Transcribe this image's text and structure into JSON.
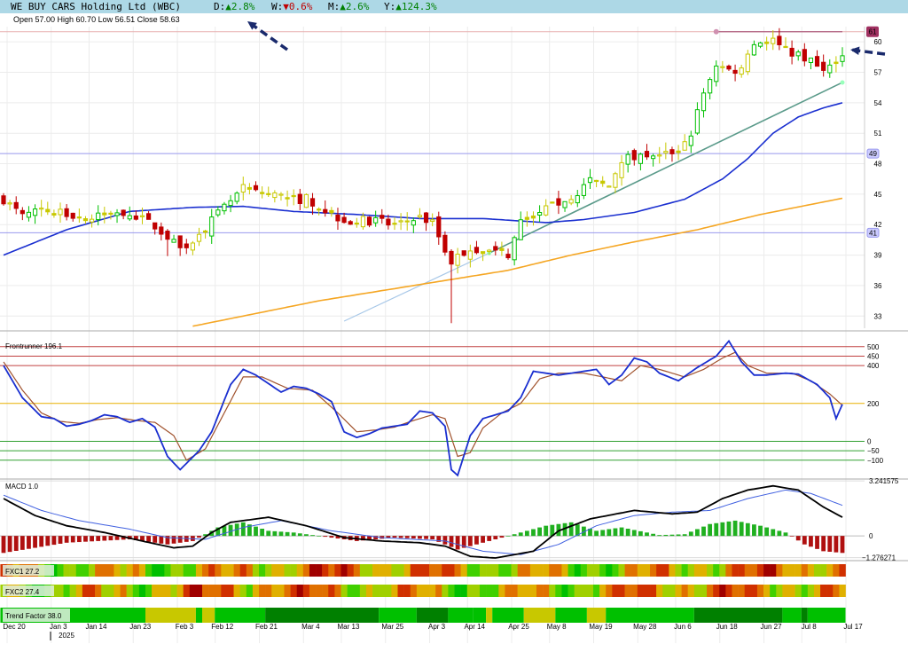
{
  "header": {
    "title": "WE BUY CARS Holding Ltd (WBC)",
    "changes": [
      {
        "label": "D:",
        "arrow": "▲",
        "value": "2.8%",
        "dir": "up"
      },
      {
        "label": "W:",
        "arrow": "▼",
        "value": "0.6%",
        "dir": "down"
      },
      {
        "label": "M:",
        "arrow": "▲",
        "value": "2.6%",
        "dir": "up"
      },
      {
        "label": "Y:",
        "arrow": "▲",
        "value": "124.3%",
        "dir": "up"
      }
    ]
  },
  "ohlc": "Open 57.00  High 60.70  Low 56.51  Close 58.63",
  "colors": {
    "up": "#00c000",
    "down": "#c00000",
    "neutral": "#c8c800",
    "ma_blue": "#1a2fd0",
    "ma_orange": "#f5a623",
    "trend": "#5a9a8a"
  },
  "chart_data": [
    {
      "type": "candlestick",
      "panel": "price",
      "yticks": [
        33,
        36,
        39,
        42,
        45,
        48,
        51,
        54,
        57,
        60
      ],
      "ylim": [
        31.8,
        61.5
      ],
      "x_labels": [
        "Dec 20",
        "Jan 3",
        "Jan 14",
        "Jan 23",
        "Feb 3",
        "Feb 12",
        "Feb 21",
        "Mar 4",
        "Mar 13",
        "Mar 25",
        "Apr 3",
        "Apr 14",
        "Apr 25",
        "May 8",
        "May 19",
        "May 28",
        "Jun 6",
        "Jun 18",
        "Jun 27",
        "Jul 8",
        "Jul 17"
      ],
      "year_label": "2025",
      "close_anchors": [
        [
          0,
          44.5
        ],
        [
          3,
          42.8
        ],
        [
          6,
          43.5
        ],
        [
          10,
          43.0
        ],
        [
          14,
          42.6
        ],
        [
          18,
          43.3
        ],
        [
          20,
          43.2
        ],
        [
          24,
          41.8
        ],
        [
          26,
          40.8
        ],
        [
          28,
          39.6
        ],
        [
          31,
          40.8
        ],
        [
          33,
          42.4
        ],
        [
          36,
          44.3
        ],
        [
          38,
          45.5
        ],
        [
          40,
          45.2
        ],
        [
          44,
          44.8
        ],
        [
          46,
          44.4
        ],
        [
          48,
          44.6
        ],
        [
          52,
          43.0
        ],
        [
          55,
          42.3
        ],
        [
          58,
          42.4
        ],
        [
          62,
          42.0
        ],
        [
          66,
          42.7
        ],
        [
          68,
          42.2
        ],
        [
          70,
          39.5
        ],
        [
          71,
          38.4
        ],
        [
          72,
          38.8
        ],
        [
          74,
          39.5
        ],
        [
          76,
          39.5
        ],
        [
          78,
          39.3
        ],
        [
          80,
          39.1
        ],
        [
          82,
          42.2
        ],
        [
          84,
          43.0
        ],
        [
          87,
          43.8
        ],
        [
          90,
          44.8
        ],
        [
          93,
          46.2
        ],
        [
          96,
          45.8
        ],
        [
          98,
          48.5
        ],
        [
          101,
          49.0
        ],
        [
          104,
          48.7
        ],
        [
          107,
          49.4
        ],
        [
          109,
          51.0
        ],
        [
          111,
          55.0
        ],
        [
          113,
          57.8
        ],
        [
          115,
          57.2
        ],
        [
          117,
          57.3
        ],
        [
          118,
          59.1
        ],
        [
          120,
          60.1
        ],
        [
          122,
          60.1
        ],
        [
          124,
          59.1
        ],
        [
          126,
          58.8
        ],
        [
          128,
          58.0
        ],
        [
          130,
          57.0
        ],
        [
          132,
          58.3
        ],
        [
          133,
          58.6
        ]
      ],
      "candle_count": 134,
      "last_close": 58.63,
      "resistance": 61.0,
      "levels": [
        {
          "value": 49.0,
          "label": "49"
        },
        {
          "value": 41.2,
          "label": "41"
        }
      ],
      "price_tag": "61",
      "ma_blue_anchors": [
        [
          0,
          39.0
        ],
        [
          10,
          41.5
        ],
        [
          20,
          43.3
        ],
        [
          30,
          43.7
        ],
        [
          38,
          43.8
        ],
        [
          46,
          43.3
        ],
        [
          56,
          43.0
        ],
        [
          66,
          42.6
        ],
        [
          76,
          42.6
        ],
        [
          86,
          42.2
        ],
        [
          92,
          42.5
        ],
        [
          100,
          43.2
        ],
        [
          108,
          44.5
        ],
        [
          114,
          46.5
        ],
        [
          118,
          48.5
        ],
        [
          122,
          51.0
        ],
        [
          126,
          52.6
        ],
        [
          130,
          53.5
        ],
        [
          133,
          54.0
        ]
      ],
      "ma_orange_anchors": [
        [
          30,
          32.0
        ],
        [
          50,
          34.5
        ],
        [
          70,
          36.5
        ],
        [
          80,
          37.5
        ],
        [
          90,
          39.0
        ],
        [
          100,
          40.3
        ],
        [
          110,
          41.5
        ],
        [
          120,
          43.0
        ],
        [
          133,
          44.6
        ]
      ],
      "trendline": [
        [
          77,
          39.2
        ],
        [
          133,
          56.0
        ]
      ],
      "trendline_ext": [
        [
          54,
          32.5
        ],
        [
          77,
          39.2
        ]
      ]
    },
    {
      "type": "line",
      "panel": "oscillator",
      "title": "Frontrunner 196.1",
      "levels": [
        500,
        450,
        400,
        200,
        0,
        -50,
        -100
      ],
      "level_labels": [
        "500",
        "450",
        "400",
        "200",
        "0",
        "−50",
        "−100"
      ],
      "ylim": [
        -190,
        560
      ],
      "fast_anchors": [
        [
          0,
          400
        ],
        [
          3,
          230
        ],
        [
          6,
          130
        ],
        [
          8,
          120
        ],
        [
          10,
          80
        ],
        [
          12,
          90
        ],
        [
          14,
          110
        ],
        [
          16,
          140
        ],
        [
          18,
          130
        ],
        [
          20,
          100
        ],
        [
          22,
          120
        ],
        [
          24,
          75
        ],
        [
          26,
          -80
        ],
        [
          28,
          -150
        ],
        [
          31,
          -50
        ],
        [
          33,
          50
        ],
        [
          36,
          300
        ],
        [
          38,
          380
        ],
        [
          40,
          350
        ],
        [
          44,
          260
        ],
        [
          46,
          290
        ],
        [
          48,
          280
        ],
        [
          50,
          250
        ],
        [
          52,
          210
        ],
        [
          54,
          50
        ],
        [
          56,
          20
        ],
        [
          58,
          40
        ],
        [
          60,
          70
        ],
        [
          62,
          80
        ],
        [
          64,
          90
        ],
        [
          66,
          160
        ],
        [
          68,
          150
        ],
        [
          70,
          80
        ],
        [
          71,
          -150
        ],
        [
          72,
          -180
        ],
        [
          74,
          30
        ],
        [
          76,
          120
        ],
        [
          80,
          160
        ],
        [
          82,
          230
        ],
        [
          84,
          370
        ],
        [
          86,
          360
        ],
        [
          88,
          350
        ],
        [
          90,
          360
        ],
        [
          92,
          370
        ],
        [
          94,
          380
        ],
        [
          96,
          300
        ],
        [
          98,
          350
        ],
        [
          100,
          440
        ],
        [
          102,
          420
        ],
        [
          104,
          360
        ],
        [
          107,
          320
        ],
        [
          110,
          390
        ],
        [
          113,
          450
        ],
        [
          115,
          530
        ],
        [
          117,
          420
        ],
        [
          119,
          350
        ],
        [
          121,
          350
        ],
        [
          124,
          360
        ],
        [
          126,
          355
        ],
        [
          129,
          300
        ],
        [
          131,
          230
        ],
        [
          132,
          120
        ],
        [
          133,
          196
        ]
      ],
      "slow_anchors": [
        [
          0,
          420
        ],
        [
          3,
          270
        ],
        [
          6,
          150
        ],
        [
          9,
          105
        ],
        [
          12,
          95
        ],
        [
          15,
          115
        ],
        [
          18,
          125
        ],
        [
          21,
          110
        ],
        [
          24,
          100
        ],
        [
          27,
          30
        ],
        [
          29,
          -100
        ],
        [
          32,
          -40
        ],
        [
          35,
          150
        ],
        [
          38,
          340
        ],
        [
          41,
          340
        ],
        [
          45,
          280
        ],
        [
          49,
          270
        ],
        [
          53,
          150
        ],
        [
          56,
          50
        ],
        [
          59,
          60
        ],
        [
          62,
          75
        ],
        [
          65,
          110
        ],
        [
          68,
          140
        ],
        [
          70,
          120
        ],
        [
          72,
          -80
        ],
        [
          74,
          -60
        ],
        [
          76,
          70
        ],
        [
          79,
          150
        ],
        [
          82,
          200
        ],
        [
          85,
          330
        ],
        [
          88,
          360
        ],
        [
          92,
          360
        ],
        [
          95,
          340
        ],
        [
          98,
          320
        ],
        [
          101,
          400
        ],
        [
          104,
          380
        ],
        [
          108,
          340
        ],
        [
          111,
          380
        ],
        [
          114,
          440
        ],
        [
          116,
          470
        ],
        [
          118,
          400
        ],
        [
          121,
          360
        ],
        [
          125,
          360
        ],
        [
          128,
          320
        ],
        [
          131,
          250
        ],
        [
          133,
          190
        ]
      ]
    },
    {
      "type": "bar+line",
      "panel": "macd",
      "title": "MACD 1.0",
      "top_label": "3.241575",
      "zero_label": "0",
      "bottom_label": "−1.276271",
      "ylim": [
        -1.35,
        3.35
      ],
      "macd_anchors": [
        [
          0,
          2.2
        ],
        [
          5,
          1.2
        ],
        [
          10,
          0.6
        ],
        [
          16,
          0.2
        ],
        [
          22,
          -0.3
        ],
        [
          27,
          -0.7
        ],
        [
          30,
          -0.6
        ],
        [
          33,
          0.2
        ],
        [
          36,
          0.8
        ],
        [
          42,
          1.1
        ],
        [
          48,
          0.6
        ],
        [
          54,
          -0.1
        ],
        [
          60,
          -0.3
        ],
        [
          66,
          -0.4
        ],
        [
          70,
          -0.6
        ],
        [
          74,
          -1.2
        ],
        [
          78,
          -1.3
        ],
        [
          84,
          -0.9
        ],
        [
          88,
          0.3
        ],
        [
          93,
          1.0
        ],
        [
          100,
          1.5
        ],
        [
          106,
          1.3
        ],
        [
          110,
          1.4
        ],
        [
          114,
          2.2
        ],
        [
          118,
          2.7
        ],
        [
          122,
          2.95
        ],
        [
          126,
          2.7
        ],
        [
          130,
          1.7
        ],
        [
          133,
          1.1
        ]
      ],
      "signal_anchors": [
        [
          0,
          2.4
        ],
        [
          6,
          1.5
        ],
        [
          12,
          0.9
        ],
        [
          20,
          0.4
        ],
        [
          26,
          -0.1
        ],
        [
          32,
          -0.2
        ],
        [
          38,
          0.5
        ],
        [
          44,
          0.9
        ],
        [
          52,
          0.3
        ],
        [
          60,
          -0.1
        ],
        [
          70,
          -0.3
        ],
        [
          76,
          -0.9
        ],
        [
          82,
          -1.1
        ],
        [
          88,
          -0.5
        ],
        [
          94,
          0.6
        ],
        [
          100,
          1.2
        ],
        [
          106,
          1.4
        ],
        [
          112,
          1.5
        ],
        [
          118,
          2.2
        ],
        [
          124,
          2.7
        ],
        [
          128,
          2.5
        ],
        [
          133,
          1.8
        ]
      ],
      "hist_anchors": [
        [
          0,
          -1.0
        ],
        [
          10,
          -0.4
        ],
        [
          20,
          -0.2
        ],
        [
          26,
          -0.5
        ],
        [
          30,
          -0.3
        ],
        [
          34,
          0.5
        ],
        [
          38,
          0.8
        ],
        [
          42,
          0.3
        ],
        [
          46,
          0.2
        ],
        [
          50,
          0.0
        ],
        [
          56,
          -0.3
        ],
        [
          62,
          -0.1
        ],
        [
          68,
          -0.2
        ],
        [
          72,
          -0.8
        ],
        [
          76,
          -0.4
        ],
        [
          80,
          0.0
        ],
        [
          86,
          0.6
        ],
        [
          90,
          0.8
        ],
        [
          94,
          0.3
        ],
        [
          98,
          0.5
        ],
        [
          104,
          0.05
        ],
        [
          108,
          0.1
        ],
        [
          112,
          0.7
        ],
        [
          116,
          0.9
        ],
        [
          120,
          0.6
        ],
        [
          124,
          0.2
        ],
        [
          127,
          -0.5
        ],
        [
          130,
          -0.9
        ],
        [
          133,
          -1.0
        ]
      ]
    },
    {
      "type": "heatmap",
      "panel": "fxc1",
      "title": "FXC1 27.2",
      "palette": [
        "#00c000",
        "#40d000",
        "#a0d000",
        "#e0b000",
        "#e07000",
        "#d03000",
        "#a00000",
        "#006000"
      ]
    },
    {
      "type": "heatmap",
      "panel": "fxc2",
      "title": "FXC2 27.4",
      "palette": [
        "#00c000",
        "#40d000",
        "#a0d000",
        "#e0b000",
        "#e07000",
        "#d03000",
        "#a00000",
        "#006000"
      ]
    },
    {
      "type": "heatmap",
      "panel": "trend",
      "title": "Trend Factor 38.0",
      "segments": [
        [
          "#00c000",
          0,
          23
        ],
        [
          "#c8c800",
          23,
          31
        ],
        [
          "#00c000",
          31,
          32
        ],
        [
          "#c8c800",
          32,
          34
        ],
        [
          "#00c000",
          34,
          42
        ],
        [
          "#008000",
          42,
          60
        ],
        [
          "#00c000",
          60,
          66
        ],
        [
          "#008000",
          66,
          71
        ],
        [
          "#00c000",
          71,
          75
        ],
        [
          "#00c000",
          75,
          77
        ],
        [
          "#c8c800",
          77,
          78
        ],
        [
          "#00c000",
          78,
          83
        ],
        [
          "#c8c800",
          83,
          88
        ],
        [
          "#00c000",
          88,
          93
        ],
        [
          "#c8c800",
          93,
          96
        ],
        [
          "#00c000",
          96,
          110
        ],
        [
          "#008000",
          110,
          124
        ],
        [
          "#00c000",
          124,
          127
        ],
        [
          "#008000",
          127,
          128
        ],
        [
          "#00c000",
          128,
          134
        ]
      ]
    }
  ]
}
